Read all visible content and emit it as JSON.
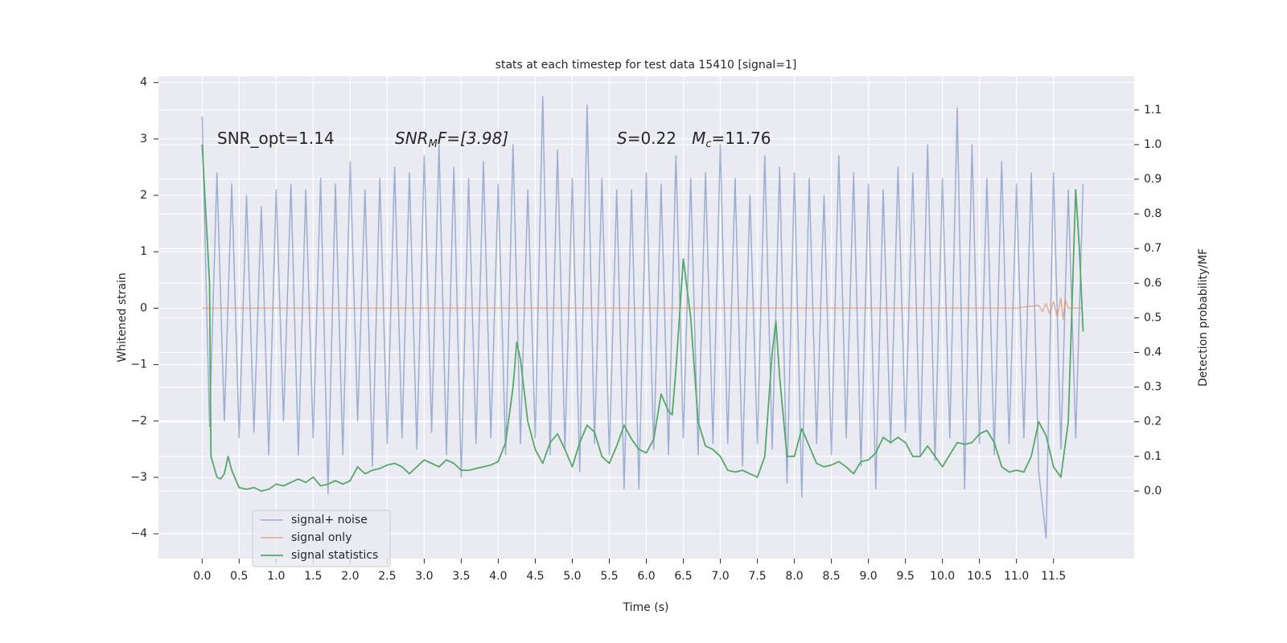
{
  "chart_data": {
    "type": "line",
    "title": "stats at each timestep for test data 15410 [signal=1]",
    "xlabel": "Time (s)",
    "ylabel": "Whitened strain",
    "y2label": "Detection probability/MF",
    "grid": true,
    "legend": "lower left",
    "annotations": [
      {
        "parts": [
          "SNR_opt=1.14"
        ]
      },
      {
        "parts": [
          "SNR",
          "M",
          "F=[3.98]"
        ]
      },
      {
        "parts": [
          "S",
          "=0.22   ",
          "M",
          "c",
          "=11.76"
        ]
      }
    ],
    "xlim": [
      -0.59,
      12.59
    ],
    "ylim": [
      -4.44,
      4.11
    ],
    "y2lim": [
      -0.195,
      1.197
    ],
    "xticks": [
      {
        "value": 0,
        "label": "0.0"
      },
      0.5,
      {
        "value": 1,
        "label": "1.0"
      },
      1.5,
      {
        "value": 2,
        "label": "2.0"
      },
      2.5,
      {
        "value": 3,
        "label": "3.0"
      },
      3.5,
      {
        "value": 4,
        "label": "4.0"
      },
      4.5,
      {
        "value": 5,
        "label": "5.0"
      },
      5.5,
      {
        "value": 6,
        "label": "6.0"
      },
      6.5,
      {
        "value": 7,
        "label": "7.0"
      },
      7.5,
      {
        "value": 8,
        "label": "8.0"
      },
      8.5,
      {
        "value": 9,
        "label": "9.0"
      },
      9.5,
      {
        "value": 10,
        "label": "10.0"
      },
      10.5,
      {
        "value": 11,
        "label": "11.0"
      },
      11.5
    ],
    "yticks": [
      {
        "value": -4,
        "label": "−4"
      },
      {
        "value": -3,
        "label": "−3"
      },
      {
        "value": -2,
        "label": "−2"
      },
      {
        "value": -1,
        "label": "−1"
      },
      0,
      1,
      2,
      3,
      4
    ],
    "y2ticks": [
      {
        "value": 0,
        "label": "0.0"
      },
      0.1,
      0.2,
      0.3,
      0.4,
      0.5,
      0.6,
      0.7,
      0.8,
      0.9,
      {
        "value": 1,
        "label": "1.0"
      },
      1.1
    ],
    "series": [
      {
        "name": "signal+ noise",
        "color": "#4c72b0",
        "x": [
          0.0,
          0.1,
          0.2,
          0.3,
          0.4,
          0.5,
          0.6,
          0.7,
          0.8,
          0.9,
          1.0,
          1.1,
          1.2,
          1.3,
          1.4,
          1.5,
          1.6,
          1.7,
          1.8,
          1.9,
          2.0,
          2.1,
          2.2,
          2.3,
          2.4,
          2.5,
          2.6,
          2.7,
          2.8,
          2.9,
          3.0,
          3.1,
          3.2,
          3.3,
          3.4,
          3.5,
          3.6,
          3.7,
          3.8,
          3.9,
          4.0,
          4.1,
          4.2,
          4.3,
          4.4,
          4.5,
          4.6,
          4.7,
          4.8,
          4.9,
          5.0,
          5.1,
          5.2,
          5.3,
          5.4,
          5.5,
          5.6,
          5.7,
          5.8,
          5.9,
          6.0,
          6.1,
          6.2,
          6.3,
          6.4,
          6.5,
          6.6,
          6.7,
          6.8,
          6.9,
          7.0,
          7.1,
          7.2,
          7.3,
          7.4,
          7.5,
          7.6,
          7.7,
          7.8,
          7.9,
          8.0,
          8.1,
          8.2,
          8.3,
          8.4,
          8.5,
          8.6,
          8.7,
          8.8,
          8.9,
          9.0,
          9.1,
          9.2,
          9.3,
          9.4,
          9.5,
          9.6,
          9.7,
          9.8,
          9.9,
          10.0,
          10.1,
          10.2,
          10.3,
          10.4,
          10.5,
          10.6,
          10.7,
          10.8,
          10.9,
          11.0,
          11.1,
          11.2,
          11.3,
          11.4,
          11.5,
          11.6,
          11.7,
          11.8,
          11.9
        ],
        "values": [
          3.4,
          -2.1,
          2.4,
          -2.0,
          2.2,
          -2.3,
          2.0,
          -2.2,
          1.8,
          -2.6,
          2.1,
          -2.0,
          2.2,
          -2.6,
          2.1,
          -2.3,
          2.3,
          -3.3,
          2.2,
          -2.6,
          2.6,
          -2.0,
          2.1,
          -2.8,
          2.3,
          -2.4,
          2.5,
          -2.3,
          2.4,
          -2.5,
          2.7,
          -2.2,
          2.9,
          -2.6,
          2.5,
          -3.0,
          2.3,
          -2.4,
          2.6,
          -2.3,
          2.2,
          -2.6,
          2.9,
          -2.4,
          2.1,
          -2.3,
          3.75,
          -2.6,
          2.8,
          -2.5,
          2.3,
          -2.9,
          3.6,
          -2.4,
          2.3,
          -2.6,
          2.1,
          -3.2,
          2.1,
          -3.2,
          2.4,
          -2.5,
          2.2,
          -2.6,
          2.7,
          -2.3,
          2.3,
          -2.6,
          2.4,
          -2.4,
          2.9,
          -2.4,
          2.3,
          -2.8,
          2.0,
          -2.4,
          2.7,
          -2.5,
          2.5,
          -3.1,
          2.4,
          -3.35,
          2.3,
          -2.4,
          2.0,
          -2.6,
          2.7,
          -2.3,
          2.4,
          -2.8,
          2.2,
          -3.2,
          2.1,
          -2.4,
          2.5,
          -2.2,
          2.4,
          -2.6,
          2.9,
          -2.7,
          2.3,
          -2.3,
          3.55,
          -3.2,
          2.9,
          -2.4,
          2.3,
          -2.6,
          2.6,
          -2.4,
          2.2,
          -2.3,
          2.4,
          -2.9,
          -4.08,
          2.4,
          -2.5,
          2.1,
          -2.3,
          2.2
        ]
      },
      {
        "name": "signal only",
        "color": "#dd8452",
        "x": [
          0.0,
          11.0,
          11.3,
          11.35,
          11.4,
          11.45,
          11.5,
          11.55,
          11.6,
          11.63,
          11.66,
          11.7,
          11.9
        ],
        "values": [
          0,
          0,
          0.05,
          -0.06,
          0.08,
          -0.1,
          0.12,
          -0.15,
          0.18,
          -0.2,
          0.15,
          0,
          0
        ]
      },
      {
        "name": "signal statistics",
        "color": "#55a868",
        "axis": "y2",
        "x": [
          0.0,
          0.1,
          0.12,
          0.2,
          0.25,
          0.3,
          0.35,
          0.4,
          0.5,
          0.6,
          0.7,
          0.8,
          0.9,
          1.0,
          1.1,
          1.2,
          1.3,
          1.4,
          1.5,
          1.6,
          1.7,
          1.8,
          1.9,
          2.0,
          2.1,
          2.2,
          2.3,
          2.4,
          2.5,
          2.6,
          2.7,
          2.8,
          2.9,
          3.0,
          3.1,
          3.2,
          3.3,
          3.4,
          3.5,
          3.6,
          3.7,
          3.8,
          3.9,
          4.0,
          4.1,
          4.2,
          4.25,
          4.3,
          4.4,
          4.5,
          4.6,
          4.7,
          4.8,
          4.9,
          5.0,
          5.1,
          5.2,
          5.3,
          5.4,
          5.5,
          5.6,
          5.7,
          5.8,
          5.9,
          6.0,
          6.1,
          6.2,
          6.3,
          6.35,
          6.4,
          6.5,
          6.6,
          6.7,
          6.8,
          6.9,
          7.0,
          7.1,
          7.2,
          7.3,
          7.4,
          7.5,
          7.6,
          7.7,
          7.75,
          7.8,
          7.9,
          8.0,
          8.1,
          8.2,
          8.3,
          8.4,
          8.5,
          8.6,
          8.7,
          8.8,
          8.9,
          9.0,
          9.1,
          9.2,
          9.3,
          9.4,
          9.5,
          9.6,
          9.7,
          9.8,
          9.9,
          10.0,
          10.1,
          10.2,
          10.3,
          10.4,
          10.5,
          10.6,
          10.7,
          10.8,
          10.9,
          11.0,
          11.1,
          11.2,
          11.3,
          11.4,
          11.5,
          11.6,
          11.7,
          11.8,
          11.85,
          11.9
        ],
        "values": [
          1.0,
          0.6,
          0.1,
          0.04,
          0.035,
          0.05,
          0.1,
          0.06,
          0.01,
          0.005,
          0.01,
          0.0,
          0.005,
          0.02,
          0.015,
          0.025,
          0.035,
          0.025,
          0.04,
          0.015,
          0.02,
          0.03,
          0.02,
          0.03,
          0.07,
          0.05,
          0.06,
          0.065,
          0.075,
          0.08,
          0.07,
          0.05,
          0.07,
          0.09,
          0.08,
          0.07,
          0.09,
          0.08,
          0.06,
          0.06,
          0.065,
          0.07,
          0.075,
          0.085,
          0.14,
          0.3,
          0.43,
          0.38,
          0.2,
          0.12,
          0.08,
          0.14,
          0.165,
          0.12,
          0.07,
          0.14,
          0.19,
          0.17,
          0.1,
          0.08,
          0.13,
          0.19,
          0.15,
          0.12,
          0.11,
          0.15,
          0.28,
          0.23,
          0.22,
          0.35,
          0.67,
          0.5,
          0.2,
          0.13,
          0.12,
          0.1,
          0.06,
          0.055,
          0.06,
          0.05,
          0.04,
          0.1,
          0.4,
          0.49,
          0.33,
          0.1,
          0.1,
          0.18,
          0.13,
          0.08,
          0.07,
          0.075,
          0.085,
          0.07,
          0.05,
          0.085,
          0.09,
          0.11,
          0.155,
          0.14,
          0.155,
          0.14,
          0.1,
          0.1,
          0.13,
          0.1,
          0.07,
          0.105,
          0.14,
          0.135,
          0.14,
          0.165,
          0.175,
          0.14,
          0.07,
          0.055,
          0.06,
          0.055,
          0.1,
          0.2,
          0.16,
          0.07,
          0.04,
          0.2,
          0.87,
          0.7,
          0.46
        ]
      }
    ]
  }
}
